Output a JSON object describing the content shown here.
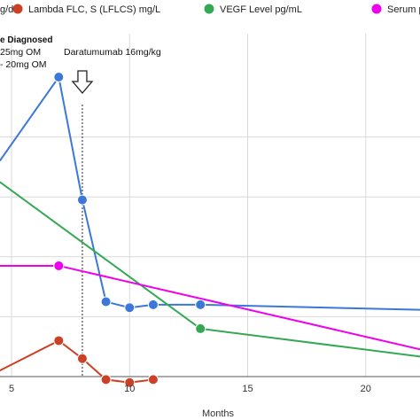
{
  "chart_data": {
    "type": "line",
    "xlabel": "Months",
    "ylabel": "",
    "xlim": [
      0,
      24
    ],
    "ylim": [
      0,
      100
    ],
    "grid": true,
    "legend_placement": "top",
    "x_ticks": [
      "5",
      "10",
      "15",
      "20"
    ],
    "x_tick_values": [
      5,
      10,
      15,
      20
    ],
    "y_grid_values": [
      20,
      40,
      60,
      80
    ],
    "legend": [
      {
        "label": "g/dL",
        "color": "#3c78d8"
      },
      {
        "label": "Lambda FLC, S (LFLCS) mg/L",
        "color": "#cc4125"
      },
      {
        "label": "VEGF Level pg/mL",
        "color": "#34a853"
      },
      {
        "label": "Serum paraprotein",
        "color": "#ee00ee"
      }
    ],
    "series": [
      {
        "color": "#3c78d8",
        "points": [
          [
            4.5,
            72
          ],
          [
            7,
            100
          ],
          [
            8,
            59
          ],
          [
            9,
            25
          ],
          [
            10,
            23
          ],
          [
            11,
            24
          ],
          [
            13,
            24
          ],
          [
            24,
            22
          ]
        ],
        "markers": [
          [
            7,
            100
          ],
          [
            8,
            59
          ],
          [
            9,
            25
          ],
          [
            10,
            23
          ],
          [
            11,
            24
          ],
          [
            13,
            24
          ]
        ]
      },
      {
        "color": "#cc4125",
        "points": [
          [
            4.5,
            2
          ],
          [
            7,
            12
          ],
          [
            8,
            6
          ],
          [
            9,
            -1
          ],
          [
            10,
            -2
          ],
          [
            11,
            -1
          ]
        ],
        "markers": [
          [
            7,
            12
          ],
          [
            8,
            6
          ],
          [
            9,
            -1
          ],
          [
            10,
            -2
          ],
          [
            11,
            -1
          ]
        ]
      },
      {
        "color": "#34a853",
        "points": [
          [
            4.5,
            65
          ],
          [
            13,
            16
          ],
          [
            24,
            5
          ]
        ],
        "markers": [
          [
            13,
            16
          ]
        ]
      },
      {
        "color": "#ee00ee",
        "points": [
          [
            4.5,
            37
          ],
          [
            7,
            37
          ],
          [
            24,
            6
          ]
        ],
        "markers": [
          [
            7,
            37
          ]
        ]
      }
    ],
    "vline_x": 8,
    "annotations": {
      "diagnosed": "e Diagnosed",
      "dose1": "25mg OM",
      "dose2": "- 20mg OM",
      "daratumumab": "Daratumumab 16mg/kg"
    }
  }
}
